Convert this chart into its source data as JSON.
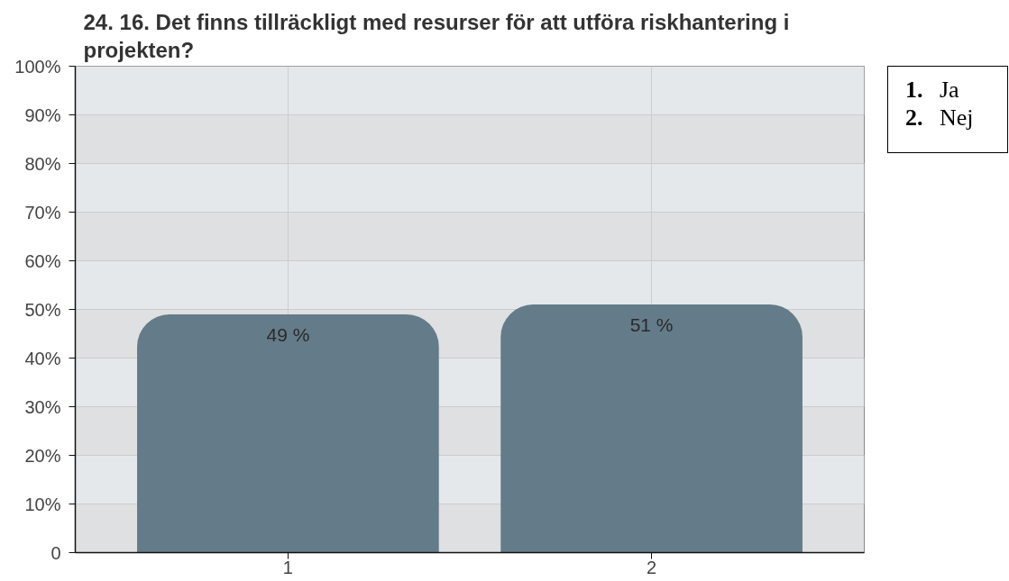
{
  "chart_data": {
    "type": "bar",
    "title": "24. 16. Det finns tillräckligt med resurser för att utföra riskhantering i projekten?",
    "categories": [
      "1",
      "2"
    ],
    "values": [
      49,
      51
    ],
    "value_labels": [
      "49 %",
      "51 %"
    ],
    "color": "#647b89",
    "ylim": [
      0,
      100
    ],
    "yticks": [
      {
        "value": 0,
        "label": "0"
      },
      {
        "value": 10,
        "label": "10%"
      },
      {
        "value": 20,
        "label": "20%"
      },
      {
        "value": 30,
        "label": "30%"
      },
      {
        "value": 40,
        "label": "40%"
      },
      {
        "value": 50,
        "label": "50%"
      },
      {
        "value": 60,
        "label": "60%"
      },
      {
        "value": 70,
        "label": "70%"
      },
      {
        "value": 80,
        "label": "80%"
      },
      {
        "value": 90,
        "label": "90%"
      },
      {
        "value": 100,
        "label": "100%"
      }
    ],
    "grid": true,
    "annotations": [
      "1. Ja",
      "2. Nej"
    ]
  }
}
